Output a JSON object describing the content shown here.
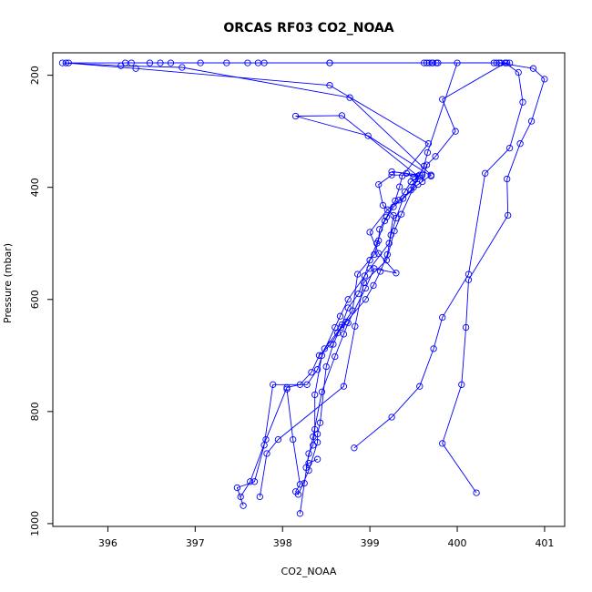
{
  "chart_data": {
    "type": "line",
    "title": "ORCAS RF03 CO2_NOAA",
    "xlabel": "CO2_NOAA",
    "ylabel": "Pressure (mbar)",
    "xlim": [
      395.37,
      401.23
    ],
    "ylim": [
      160,
      1005
    ],
    "y_reversed": true,
    "x_ticks": [
      396,
      397,
      398,
      399,
      400,
      401
    ],
    "y_ticks": [
      200,
      400,
      600,
      800,
      1000
    ],
    "marker": "open-circle",
    "color": "#0000ff",
    "series": [
      {
        "points": [
          [
            398.82,
            865
          ],
          [
            399.25,
            810
          ],
          [
            399.57,
            755
          ],
          [
            399.73,
            688
          ],
          [
            399.83,
            632
          ],
          [
            400.13,
            555
          ],
          [
            400.32,
            375
          ],
          [
            400.6,
            330
          ],
          [
            400.75,
            248
          ],
          [
            400.7,
            195
          ],
          [
            400.55,
            178
          ],
          [
            400.45,
            178
          ],
          [
            399.72,
            178
          ],
          [
            398.54,
            178
          ],
          [
            397.06,
            178
          ],
          [
            396.27,
            178
          ],
          [
            395.55,
            178
          ]
        ]
      },
      {
        "points": [
          [
            395.52,
            178
          ],
          [
            396.32,
            188
          ],
          [
            398.54,
            218
          ],
          [
            399.67,
            322
          ],
          [
            399.37,
            380
          ],
          [
            399.34,
            399
          ],
          [
            399.29,
            424
          ],
          [
            399.19,
            453
          ],
          [
            399.11,
            475
          ],
          [
            399.1,
            495
          ],
          [
            399.05,
            520
          ],
          [
            398.86,
            555
          ],
          [
            398.8,
            620
          ],
          [
            398.67,
            650
          ],
          [
            398.48,
            688
          ],
          [
            398.4,
            725
          ],
          [
            398.28,
            752
          ],
          [
            397.89,
            752
          ],
          [
            397.79,
            860
          ],
          [
            397.68,
            925
          ],
          [
            397.48,
            936
          ],
          [
            397.55,
            968
          ]
        ]
      },
      {
        "points": [
          [
            395.48,
            178
          ],
          [
            396.15,
            183
          ],
          [
            396.85,
            186
          ],
          [
            398.77,
            240
          ],
          [
            399.7,
            378
          ],
          [
            399.55,
            395
          ],
          [
            399.38,
            420
          ],
          [
            399.3,
            455
          ],
          [
            399.24,
            485
          ],
          [
            399.2,
            520
          ],
          [
            399.12,
            550
          ],
          [
            399.04,
            575
          ],
          [
            398.95,
            600
          ],
          [
            398.73,
            640
          ],
          [
            398.63,
            660
          ],
          [
            398.55,
            680
          ],
          [
            398.42,
            700
          ],
          [
            398.33,
            730
          ],
          [
            398.2,
            752
          ],
          [
            398.05,
            757
          ],
          [
            397.81,
            850
          ],
          [
            397.63,
            925
          ],
          [
            397.52,
            952
          ]
        ]
      },
      {
        "points": [
          [
            397.74,
            952
          ],
          [
            397.82,
            875
          ],
          [
            397.95,
            850
          ],
          [
            398.7,
            755
          ],
          [
            398.83,
            648
          ],
          [
            398.93,
            570
          ],
          [
            399.19,
            530
          ],
          [
            399.28,
            478
          ],
          [
            399.36,
            448
          ],
          [
            399.5,
            400
          ],
          [
            399.62,
            362
          ],
          [
            399.66,
            338
          ],
          [
            400.0,
            178
          ],
          [
            400.48,
            178
          ],
          [
            400.87,
            188
          ],
          [
            401.0,
            207
          ],
          [
            400.85,
            282
          ],
          [
            400.72,
            322
          ],
          [
            400.57,
            385
          ],
          [
            400.58,
            450
          ],
          [
            400.13,
            565
          ],
          [
            400.1,
            650
          ],
          [
            400.05,
            752
          ],
          [
            399.83,
            857
          ],
          [
            400.22,
            945
          ]
        ]
      },
      {
        "points": [
          [
            398.05,
            760
          ],
          [
            398.12,
            850
          ],
          [
            398.2,
            930
          ],
          [
            398.15,
            943
          ],
          [
            398.18,
            948
          ],
          [
            398.3,
            905
          ],
          [
            398.4,
            855
          ],
          [
            398.4,
            840
          ],
          [
            398.43,
            820
          ],
          [
            398.5,
            720
          ],
          [
            398.58,
            680
          ],
          [
            398.68,
            645
          ],
          [
            398.75,
            615
          ],
          [
            398.87,
            590
          ],
          [
            398.94,
            558
          ],
          [
            399.0,
            530
          ],
          [
            399.08,
            500
          ],
          [
            399.17,
            460
          ],
          [
            399.27,
            435
          ],
          [
            399.47,
            405
          ],
          [
            399.55,
            380
          ],
          [
            398.68,
            272
          ],
          [
            398.15,
            273
          ],
          [
            398.98,
            308
          ],
          [
            399.7,
            380
          ]
        ]
      },
      {
        "points": [
          [
            398.2,
            982
          ],
          [
            398.25,
            928
          ],
          [
            398.3,
            875
          ],
          [
            398.35,
            860
          ],
          [
            398.37,
            832
          ],
          [
            398.37,
            770
          ],
          [
            398.45,
            700
          ],
          [
            398.6,
            650
          ],
          [
            398.66,
            630
          ],
          [
            398.75,
            600
          ],
          [
            399.0,
            545
          ],
          [
            399.22,
            500
          ],
          [
            399.27,
            450
          ],
          [
            399.15,
            432
          ],
          [
            399.1,
            395
          ],
          [
            399.25,
            378
          ],
          [
            399.6,
            378
          ],
          [
            399.6,
            390
          ],
          [
            399.65,
            360
          ],
          [
            399.75,
            345
          ],
          [
            399.98,
            300
          ],
          [
            399.83,
            243
          ],
          [
            400.55,
            178
          ],
          [
            400.6,
            178
          ]
        ]
      },
      {
        "points": [
          [
            398.4,
            885
          ],
          [
            398.3,
            892
          ],
          [
            398.27,
            900
          ],
          [
            398.35,
            845
          ],
          [
            398.45,
            765
          ],
          [
            398.6,
            702
          ],
          [
            398.7,
            662
          ],
          [
            398.75,
            642
          ],
          [
            398.95,
            580
          ],
          [
            399.05,
            545
          ],
          [
            399.3,
            553
          ],
          [
            399.1,
            518
          ],
          [
            399.0,
            480
          ],
          [
            399.2,
            440
          ],
          [
            399.33,
            423
          ],
          [
            399.4,
            408
          ],
          [
            399.47,
            390
          ],
          [
            399.52,
            385
          ],
          [
            399.57,
            378
          ],
          [
            399.25,
            372
          ],
          [
            399.42,
            375
          ],
          [
            399.5,
            382
          ]
        ]
      },
      {
        "points": [
          [
            396.48,
            178
          ],
          [
            396.2,
            178
          ],
          [
            396.6,
            178
          ],
          [
            396.72,
            178
          ],
          [
            397.36,
            178
          ],
          [
            397.6,
            178
          ],
          [
            397.72,
            178
          ],
          [
            397.79,
            178
          ],
          [
            398.54,
            178
          ],
          [
            399.62,
            178
          ],
          [
            399.65,
            178
          ],
          [
            399.68,
            178
          ],
          [
            399.71,
            178
          ],
          [
            399.76,
            178
          ],
          [
            399.78,
            178
          ],
          [
            400.42,
            178
          ],
          [
            400.5,
            178
          ],
          [
            400.57,
            178
          ]
        ]
      }
    ]
  }
}
